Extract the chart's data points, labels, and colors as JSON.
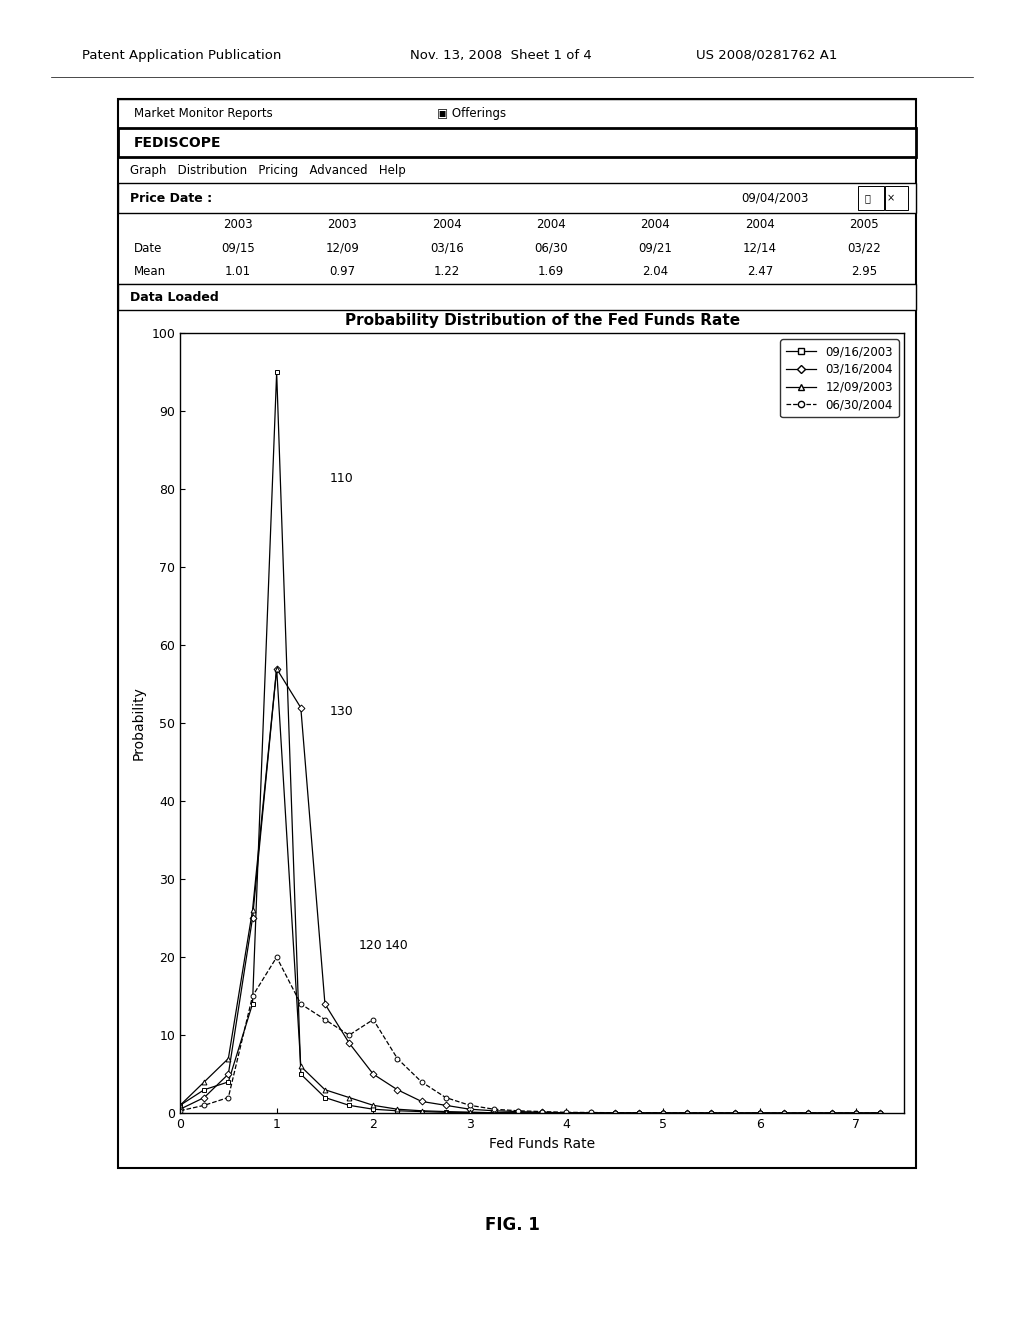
{
  "title": "Probability Distribution of the Fed Funds Rate",
  "xlabel": "Fed Funds Rate",
  "ylabel": "Probability",
  "xlim": [
    0,
    7.5
  ],
  "ylim": [
    0,
    100
  ],
  "yticks": [
    0,
    10,
    20,
    30,
    40,
    50,
    60,
    70,
    80,
    90,
    100
  ],
  "xticks": [
    0,
    1,
    2,
    3,
    4,
    5,
    6,
    7
  ],
  "header_title": "Market Monitor Reports",
  "header_offerings": "Offerings",
  "app_title": "FEDISCOPE",
  "menu_items": [
    "Graph",
    "Distribution",
    "Pricing",
    "Advanced",
    "Help"
  ],
  "price_date_label": "Price Date :",
  "price_date_value": "09/04/2003",
  "status_bar": "Data Loaded",
  "table_years": [
    "2003",
    "2003",
    "2004",
    "2004",
    "2004",
    "2004",
    "2005"
  ],
  "table_dates": [
    "09/15",
    "12/09",
    "03/16",
    "06/30",
    "09/21",
    "12/14",
    "03/22"
  ],
  "table_means": [
    "1.01",
    "0.97",
    "1.22",
    "1.69",
    "2.04",
    "2.47",
    "2.95"
  ],
  "annotation_110": "110",
  "annotation_130": "130",
  "annotation_120": "120",
  "annotation_140": "140",
  "legend_entries": [
    "09/16/2003",
    "03/16/2004",
    "12/09/2003",
    "06/30/2004"
  ],
  "series": {
    "09/16/2003": {
      "x": [
        0,
        0.25,
        0.5,
        0.75,
        1.0,
        1.25,
        1.5,
        1.75,
        2.0,
        2.25,
        2.5,
        2.75,
        3.0,
        3.25,
        3.5,
        3.75,
        4.0,
        4.25,
        4.5,
        4.75,
        5.0,
        5.25,
        5.5,
        5.75,
        6.0,
        6.25,
        6.5,
        6.75,
        7.0,
        7.25
      ],
      "y": [
        1,
        3,
        4,
        14,
        95,
        5,
        2,
        1,
        0.5,
        0.3,
        0.2,
        0.1,
        0.1,
        0.05,
        0.05,
        0.02,
        0.02,
        0.01,
        0.01,
        0.01,
        0.01,
        0.0,
        0.0,
        0.0,
        0.0,
        0.0,
        0.0,
        0.0,
        0.0,
        0.0
      ],
      "marker": "s",
      "linestyle": "-"
    },
    "03/16/2004": {
      "x": [
        0,
        0.25,
        0.5,
        0.75,
        1.0,
        1.25,
        1.5,
        1.75,
        2.0,
        2.25,
        2.5,
        2.75,
        3.0,
        3.25,
        3.5,
        3.75,
        4.0,
        4.25,
        4.5,
        4.75,
        5.0,
        5.25,
        5.5,
        5.75,
        6.0,
        6.25,
        6.5,
        6.75,
        7.0,
        7.25
      ],
      "y": [
        0.5,
        2,
        5,
        25,
        57,
        52,
        14,
        9,
        5,
        3,
        1.5,
        1,
        0.5,
        0.3,
        0.2,
        0.1,
        0.05,
        0.03,
        0.02,
        0.01,
        0.01,
        0.0,
        0.0,
        0.0,
        0.0,
        0.0,
        0.0,
        0.0,
        0.0,
        0.0
      ],
      "marker": "D",
      "linestyle": "-"
    },
    "12/09/2003": {
      "x": [
        0,
        0.25,
        0.5,
        0.75,
        1.0,
        1.25,
        1.5,
        1.75,
        2.0,
        2.25,
        2.5,
        2.75,
        3.0,
        3.25,
        3.5,
        3.75,
        4.0,
        4.25,
        4.5,
        4.75,
        5.0,
        5.25,
        5.5,
        5.75,
        6.0,
        6.25,
        6.5,
        6.75,
        7.0,
        7.25
      ],
      "y": [
        1,
        4,
        7,
        26,
        57,
        6,
        3,
        2,
        1,
        0.5,
        0.3,
        0.2,
        0.1,
        0.05,
        0.02,
        0.01,
        0.01,
        0.0,
        0.0,
        0.0,
        0.0,
        0.0,
        0.0,
        0.0,
        0.0,
        0.0,
        0.0,
        0.0,
        0.0,
        0.0
      ],
      "marker": "^",
      "linestyle": "-"
    },
    "06/30/2004": {
      "x": [
        0,
        0.25,
        0.5,
        0.75,
        1.0,
        1.25,
        1.5,
        1.75,
        2.0,
        2.25,
        2.5,
        2.75,
        3.0,
        3.25,
        3.5,
        3.75,
        4.0,
        4.25,
        4.5,
        4.75,
        5.0,
        5.25,
        5.5,
        5.75,
        6.0,
        6.25,
        6.5,
        6.75,
        7.0,
        7.25
      ],
      "y": [
        0.3,
        1,
        2,
        15,
        20,
        14,
        12,
        10,
        12,
        7,
        4,
        2,
        1,
        0.5,
        0.3,
        0.2,
        0.1,
        0.08,
        0.05,
        0.03,
        0.02,
        0.01,
        0.01,
        0.0,
        0.0,
        0.0,
        0.0,
        0.0,
        0.0,
        0.0
      ],
      "marker": "o",
      "linestyle": "--"
    }
  },
  "bg_color": "#ffffff",
  "plot_bg": "#ffffff",
  "fig_caption_text": "FIG. 1",
  "patent_line1": "Patent Application Publication",
  "patent_line2": "Nov. 13, 2008  Sheet 1 of 4",
  "patent_line3": "US 2008/0281762 A1"
}
